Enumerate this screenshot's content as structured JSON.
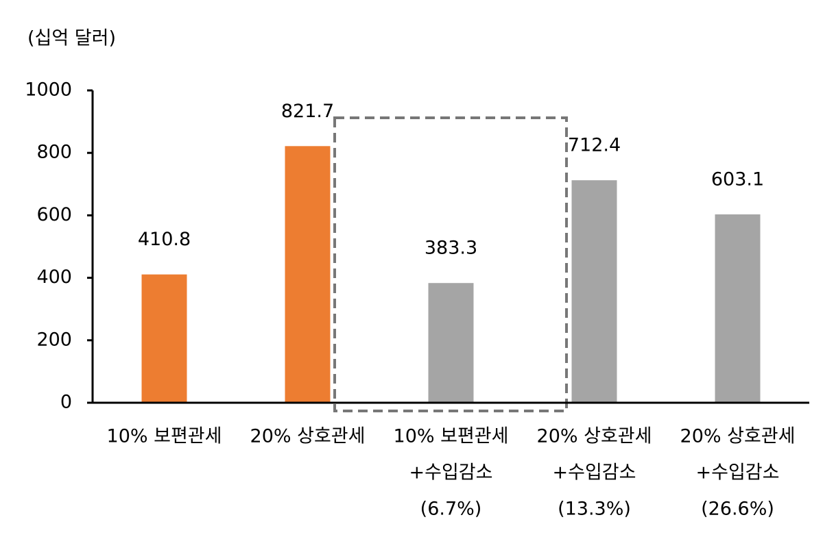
{
  "chart_data": {
    "type": "bar",
    "y_label": "(십억 달러)",
    "categories": [
      [
        "10% 보편관세"
      ],
      [
        "20% 상호관세"
      ],
      [
        "10% 보편관세",
        "+수입감소",
        "(6.7%)"
      ],
      [
        "20% 상호관세",
        "+수입감소",
        "(13.3%)"
      ],
      [
        "20% 상호관세",
        "+수입감소",
        "(26.6%)"
      ]
    ],
    "values": [
      410.8,
      821.7,
      383.3,
      712.4,
      603.1
    ],
    "colors": [
      "#ed7d31",
      "#ed7d31",
      "#a5a5a5",
      "#a5a5a5",
      "#a5a5a5"
    ],
    "ylim": [
      0,
      1000
    ],
    "yticks": [
      0,
      200,
      400,
      600,
      800,
      1000
    ],
    "grid": false
  }
}
